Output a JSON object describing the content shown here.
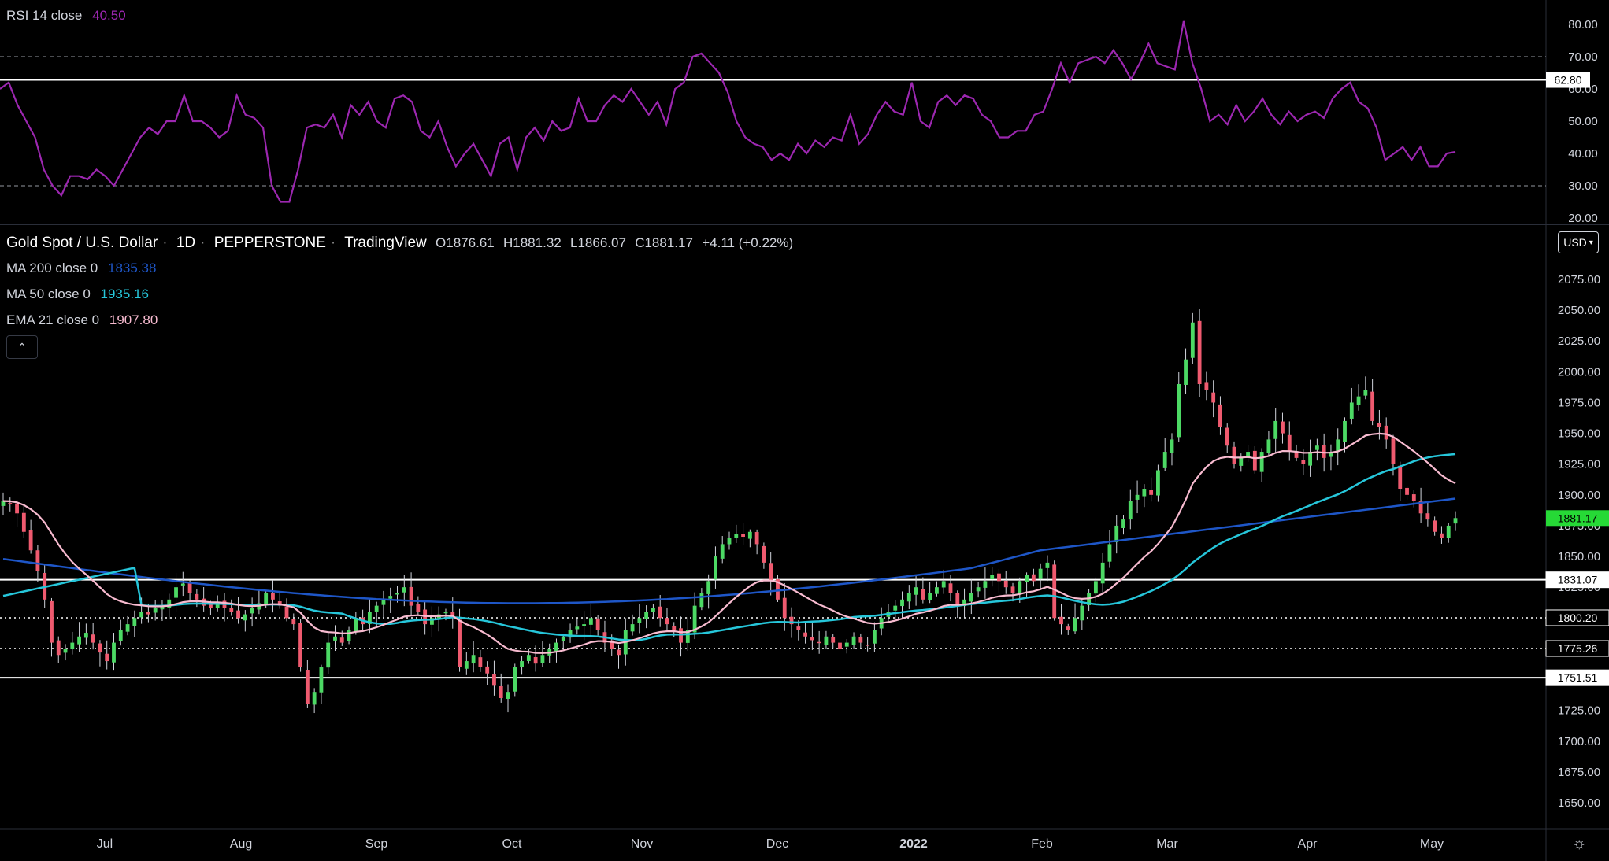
{
  "colors": {
    "background": "#000000",
    "up_candle": "#4cd964",
    "down_candle": "#ef5a6f",
    "rsi_line": "#9c27b0",
    "ma200": "#1e56c7",
    "ma50": "#26c6da",
    "ema21": "#f8bbd0",
    "last_price_badge": "#26d936",
    "text": "#d1d4dc"
  },
  "rsi_legend": {
    "label": "RSI 14 close",
    "value": "40.50"
  },
  "main_legend": {
    "symbol": "Gold Spot / U.S. Dollar",
    "interval": "1D",
    "exchange": "PEPPERSTONE",
    "source": "TradingView",
    "open": "O1876.61",
    "high": "H1881.32",
    "low": "L1866.07",
    "close": "C1881.17",
    "change": "+4.11 (+0.22%)"
  },
  "indicators": [
    {
      "label": "MA 200 close 0",
      "value": "1835.38",
      "color": "#1e56c7"
    },
    {
      "label": "MA 50 close 0",
      "value": "1935.16",
      "color": "#26c6da"
    },
    {
      "label": "EMA 21 close 0",
      "value": "1907.80",
      "color": "#f8bbd0"
    }
  ],
  "currency_button": "USD",
  "collapse_icon": "chevron-up-icon",
  "settings_icon": "gear-icon",
  "chart_data": [
    {
      "type": "line",
      "title": "RSI 14 close",
      "y_ticks": [
        "80.00",
        "70.00",
        "60.00",
        "50.00",
        "40.00",
        "30.00",
        "20.00"
      ],
      "y_range": [
        20,
        80
      ],
      "dashed_levels": [
        70,
        30
      ],
      "horizontal_level": {
        "value": 62.8,
        "label": "62.80"
      },
      "series": [
        {
          "values": [
            60,
            62,
            55,
            50,
            45,
            35,
            30,
            27,
            33,
            33,
            32,
            35,
            33,
            30,
            35,
            40,
            45,
            48,
            46,
            50,
            50,
            58,
            50,
            50,
            48,
            45,
            47,
            58,
            52,
            51,
            48,
            30,
            25,
            25,
            35,
            48,
            49,
            48,
            52,
            45,
            55,
            52,
            56,
            50,
            48,
            57,
            58,
            56,
            47,
            45,
            50,
            42,
            36,
            40,
            43,
            38,
            33,
            43,
            45,
            35,
            45,
            48,
            44,
            50,
            47,
            48,
            57,
            50,
            50,
            55,
            58,
            56,
            60,
            56,
            52,
            56,
            49,
            60,
            62,
            70,
            71,
            68,
            65,
            59,
            50,
            45,
            43,
            42,
            38,
            40,
            38,
            43,
            40,
            44,
            42,
            45,
            44,
            52,
            43,
            46,
            52,
            56,
            53,
            52,
            62,
            50,
            48,
            56,
            58,
            55,
            58,
            57,
            52,
            50,
            45,
            45,
            47,
            47,
            52,
            53,
            60,
            68,
            62,
            68,
            69,
            70,
            68,
            72,
            68,
            63,
            68,
            74,
            68,
            67,
            66,
            81,
            68,
            60,
            50,
            52,
            49,
            55,
            50,
            53,
            57,
            52,
            49,
            53,
            50,
            52,
            53,
            51,
            57,
            60,
            62,
            56,
            54,
            48,
            38,
            40,
            42,
            38,
            42,
            36,
            36,
            40,
            40.5
          ]
        }
      ]
    },
    {
      "type": "candlestick",
      "title": "Gold Spot / U.S. Dollar · 1D · PEPPERSTONE",
      "x_tick_labels": [
        "Jul",
        "Aug",
        "Sep",
        "Oct",
        "Nov",
        "Dec",
        "2022",
        "Feb",
        "Mar",
        "Apr",
        "May"
      ],
      "y_ticks": [
        "2075.00",
        "2050.00",
        "2025.00",
        "2000.00",
        "1975.00",
        "1950.00",
        "1925.00",
        "1900.00",
        "1875.00",
        "1850.00",
        "1825.00",
        "1800.00",
        "1775.00",
        "1750.00",
        "1725.00",
        "1700.00",
        "1675.00",
        "1650.00"
      ],
      "y_range": [
        1640,
        2090
      ],
      "key_levels": [
        {
          "value": 1831.07,
          "label": "1831.07",
          "style": "solid"
        },
        {
          "value": 1800.2,
          "label": "1800.20",
          "style": "dotted"
        },
        {
          "value": 1775.26,
          "label": "1775.26",
          "style": "dotted"
        },
        {
          "value": 1751.51,
          "label": "1751.51",
          "style": "solid"
        }
      ],
      "last_price": {
        "value": 1881.17,
        "label": "1881.17"
      },
      "close_path": [
        1895,
        1893,
        1885,
        1870,
        1855,
        1838,
        1815,
        1780,
        1770,
        1775,
        1780,
        1785,
        1788,
        1780,
        1772,
        1765,
        1780,
        1790,
        1795,
        1800,
        1805,
        1803,
        1808,
        1810,
        1815,
        1825,
        1828,
        1820,
        1815,
        1810,
        1808,
        1812,
        1808,
        1805,
        1800,
        1803,
        1808,
        1812,
        1820,
        1815,
        1810,
        1800,
        1795,
        1760,
        1730,
        1740,
        1760,
        1780,
        1785,
        1780,
        1790,
        1800,
        1795,
        1805,
        1810,
        1815,
        1818,
        1820,
        1825,
        1810,
        1805,
        1795,
        1800,
        1803,
        1805,
        1800,
        1760,
        1765,
        1770,
        1760,
        1755,
        1745,
        1735,
        1740,
        1760,
        1765,
        1770,
        1763,
        1770,
        1775,
        1780,
        1785,
        1790,
        1793,
        1795,
        1800,
        1790,
        1780,
        1775,
        1770,
        1790,
        1795,
        1800,
        1805,
        1808,
        1800,
        1795,
        1790,
        1780,
        1790,
        1810,
        1820,
        1830,
        1850,
        1860,
        1865,
        1868,
        1866,
        1870,
        1860,
        1845,
        1830,
        1815,
        1800,
        1795,
        1790,
        1785,
        1782,
        1780,
        1785,
        1780,
        1775,
        1780,
        1785,
        1780,
        1778,
        1790,
        1800,
        1805,
        1810,
        1815,
        1820,
        1825,
        1815,
        1820,
        1825,
        1830,
        1820,
        1810,
        1815,
        1820,
        1825,
        1830,
        1835,
        1830,
        1825,
        1820,
        1830,
        1835,
        1830,
        1840,
        1845,
        1800,
        1795,
        1790,
        1800,
        1810,
        1820,
        1830,
        1845,
        1860,
        1875,
        1880,
        1895,
        1900,
        1905,
        1900,
        1920,
        1935,
        1945,
        1990,
        2010,
        2040,
        1990,
        1985,
        1975,
        1955,
        1940,
        1925,
        1930,
        1935,
        1920,
        1935,
        1945,
        1960,
        1950,
        1935,
        1930,
        1925,
        1935,
        1940,
        1930,
        1935,
        1945,
        1960,
        1975,
        1980,
        1985,
        1960,
        1955,
        1945,
        1925,
        1905,
        1900,
        1895,
        1885,
        1880,
        1870,
        1865,
        1875,
        1881.17
      ],
      "series": [
        {
          "name": "MA 200 close 0",
          "values": [
            1848,
            1835,
            1835.38
          ]
        },
        {
          "name": "MA 50 close 0",
          "values": [
            1815,
            1935.16
          ]
        },
        {
          "name": "EMA 21 close 0",
          "values": [
            1860,
            1907.8
          ]
        }
      ]
    }
  ]
}
